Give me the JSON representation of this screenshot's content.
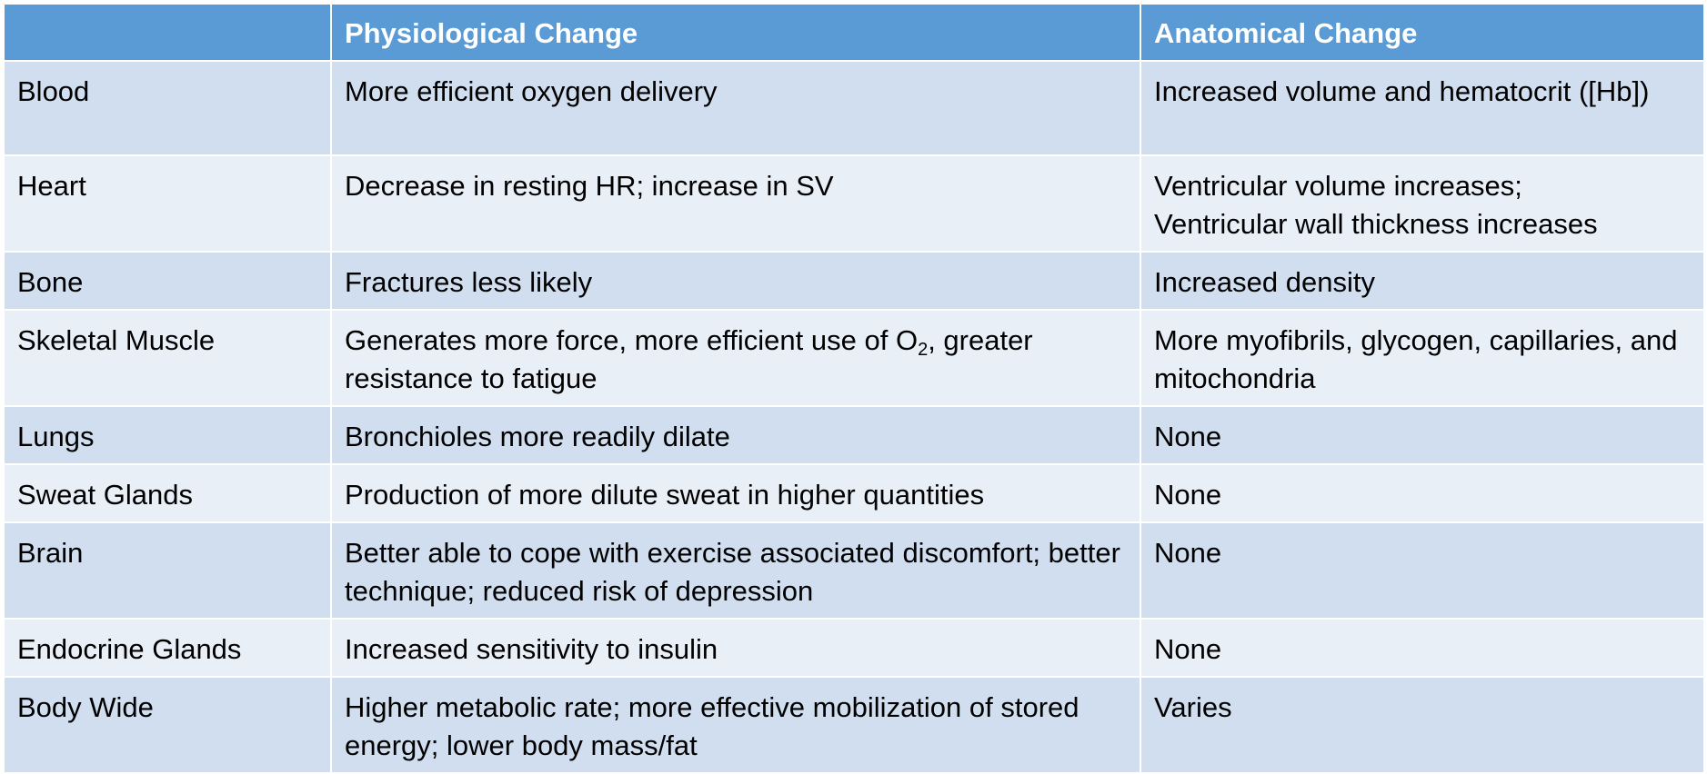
{
  "table": {
    "headers": [
      "",
      "Physiological Change",
      "Anatomical Change"
    ],
    "rows": [
      {
        "system": "Blood",
        "physiological": "More efficient oxygen delivery",
        "anatomical": "Increased volume and hematocrit ([Hb])"
      },
      {
        "system": "Heart",
        "physiological": "Decrease in resting HR; increase in SV",
        "anatomical_line1": "Ventricular volume increases;",
        "anatomical_line2": "Ventricular wall thickness increases"
      },
      {
        "system": "Bone",
        "physiological": "Fractures less likely",
        "anatomical": "Increased density"
      },
      {
        "system": "Skeletal Muscle",
        "physiological_pre": "Generates more force, more efficient use of O",
        "physiological_sub": "2",
        "physiological_post": ", greater resistance to fatigue",
        "anatomical": "More myofibrils, glycogen, capillaries, and mitochondria"
      },
      {
        "system": "Lungs",
        "physiological": "Bronchioles more readily dilate",
        "anatomical": "None"
      },
      {
        "system": "Sweat Glands",
        "physiological": "Production of more dilute sweat in higher quantities",
        "anatomical": "None"
      },
      {
        "system": "Brain",
        "physiological": "Better able to cope with exercise associated discomfort; better technique; reduced risk of depression",
        "anatomical": "None"
      },
      {
        "system": "Endocrine Glands",
        "physiological": "Increased sensitivity to insulin",
        "anatomical": "None"
      },
      {
        "system": "Body Wide",
        "physiological": "Higher metabolic rate; more effective mobilization of stored energy; lower body mass/fat",
        "anatomical": "Varies"
      }
    ]
  },
  "colors": {
    "header_bg": "#5b9bd5",
    "header_text": "#ffffff",
    "row_odd_bg": "#d0deef",
    "row_even_bg": "#e9eff7"
  }
}
